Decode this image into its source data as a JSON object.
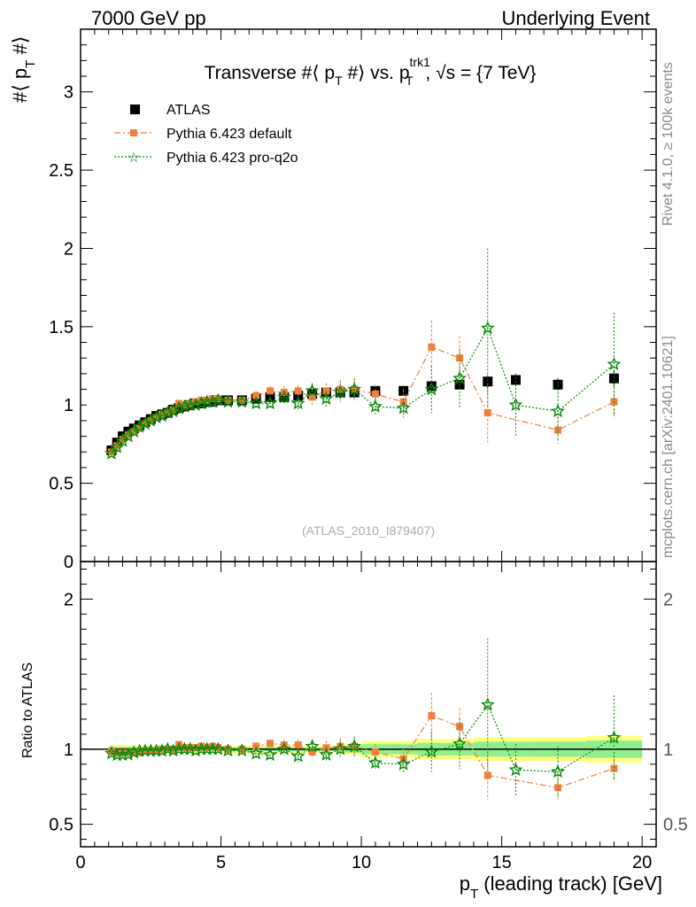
{
  "header": {
    "left": "7000 GeV pp",
    "right": "Underlying Event"
  },
  "side": {
    "rivet": "Rivet 4.1.0, ≥ 100k events",
    "mcplots": "mcplots.cern.ch [arXiv:2401.10621]"
  },
  "colors": {
    "atlas": "#000000",
    "default": "#f0803c",
    "proq2o": "#0a8a0a",
    "band_inner": "#90ee90",
    "band_outer": "#ffff80"
  },
  "chart_data": [
    {
      "type": "scatter",
      "title": "Transverse #⟨ p_T #⟩ vs. p_T^trk1, √s = {7 TeV}",
      "title_parts": {
        "lead": "Transverse #⟨ p",
        "sub1": "T",
        "mid": " #⟩ vs. p",
        "sup2": "trk1",
        "sub2": "T",
        "tail": ", √s = {7 TeV}"
      },
      "ylabel": "#⟨ p_T #⟩",
      "ylabel_parts": {
        "lead": "#⟨ p",
        "sub": "T",
        "tail": " #⟩"
      },
      "watermark": "(ATLAS_2010_I879407)",
      "xlim": [
        0,
        20.5
      ],
      "ylim": [
        0,
        3.4
      ],
      "yticks": [
        0,
        0.5,
        1,
        1.5,
        2,
        2.5,
        3
      ],
      "ytick_labels": [
        "0",
        "0.5",
        "1",
        "1.5",
        "2",
        "2.5",
        "3"
      ],
      "legend_position": "top-left",
      "legend": [
        "ATLAS",
        "Pythia 6.423 default",
        "Pythia 6.423 pro-q2o"
      ],
      "series": [
        {
          "name": "ATLAS",
          "x": [
            1.1,
            1.3,
            1.5,
            1.7,
            1.9,
            2.1,
            2.3,
            2.5,
            2.7,
            2.9,
            3.1,
            3.3,
            3.5,
            3.7,
            3.9,
            4.1,
            4.3,
            4.5,
            4.7,
            4.9,
            5.25,
            5.75,
            6.25,
            6.75,
            7.25,
            7.75,
            8.25,
            8.75,
            9.25,
            9.75,
            10.5,
            11.5,
            12.5,
            13.5,
            14.5,
            15.5,
            17.0,
            19.0
          ],
          "y": [
            0.71,
            0.76,
            0.8,
            0.83,
            0.85,
            0.87,
            0.89,
            0.91,
            0.93,
            0.94,
            0.95,
            0.97,
            0.98,
            0.99,
            1.0,
            1.01,
            1.01,
            1.02,
            1.02,
            1.03,
            1.03,
            1.03,
            1.04,
            1.05,
            1.05,
            1.06,
            1.07,
            1.08,
            1.08,
            1.08,
            1.09,
            1.09,
            1.12,
            1.13,
            1.15,
            1.16,
            1.13,
            1.17
          ],
          "yerr": [
            0.01,
            0.01,
            0.01,
            0.01,
            0.01,
            0.01,
            0.01,
            0.01,
            0.01,
            0.01,
            0.01,
            0.01,
            0.01,
            0.01,
            0.01,
            0.01,
            0.01,
            0.01,
            0.01,
            0.01,
            0.01,
            0.01,
            0.01,
            0.01,
            0.01,
            0.01,
            0.01,
            0.01,
            0.01,
            0.02,
            0.02,
            0.02,
            0.03,
            0.03,
            0.04,
            0.04,
            0.04,
            0.05
          ]
        },
        {
          "name": "Pythia 6.423 default",
          "x": [
            1.1,
            1.3,
            1.5,
            1.7,
            1.9,
            2.1,
            2.3,
            2.5,
            2.7,
            2.9,
            3.1,
            3.3,
            3.5,
            3.7,
            3.9,
            4.1,
            4.3,
            4.5,
            4.7,
            4.9,
            5.25,
            5.75,
            6.25,
            6.75,
            7.25,
            7.75,
            8.25,
            8.75,
            9.25,
            9.75,
            10.5,
            11.5,
            12.5,
            13.5,
            14.5,
            17.0,
            19.0
          ],
          "y": [
            0.7,
            0.74,
            0.78,
            0.81,
            0.83,
            0.85,
            0.88,
            0.9,
            0.92,
            0.94,
            0.95,
            0.97,
            1.01,
            1.0,
            1.01,
            1.02,
            1.03,
            1.03,
            1.04,
            1.04,
            1.03,
            1.03,
            1.06,
            1.09,
            1.08,
            1.09,
            1.05,
            1.09,
            1.1,
            1.1,
            1.07,
            1.02,
            1.37,
            1.3,
            0.95,
            0.84,
            1.02
          ],
          "yerr": [
            0.01,
            0.01,
            0.01,
            0.01,
            0.01,
            0.01,
            0.01,
            0.01,
            0.01,
            0.01,
            0.01,
            0.01,
            0.01,
            0.01,
            0.01,
            0.01,
            0.01,
            0.01,
            0.01,
            0.01,
            0.02,
            0.02,
            0.03,
            0.03,
            0.04,
            0.04,
            0.05,
            0.05,
            0.06,
            0.06,
            0.06,
            0.08,
            0.17,
            0.14,
            0.19,
            0.09,
            0.1
          ],
          "offscreen_ratio_note": "15.5"
        },
        {
          "name": "Pythia 6.423 pro-q2o",
          "x": [
            1.1,
            1.3,
            1.5,
            1.7,
            1.9,
            2.1,
            2.3,
            2.5,
            2.7,
            2.9,
            3.1,
            3.3,
            3.5,
            3.7,
            3.9,
            4.1,
            4.3,
            4.5,
            4.7,
            4.9,
            5.25,
            5.75,
            6.25,
            6.75,
            7.25,
            7.75,
            8.25,
            8.75,
            9.25,
            9.75,
            10.5,
            11.5,
            12.5,
            13.5,
            14.5,
            15.5,
            17.0,
            19.0
          ],
          "y": [
            0.69,
            0.73,
            0.77,
            0.8,
            0.83,
            0.86,
            0.88,
            0.9,
            0.92,
            0.93,
            0.95,
            0.96,
            0.98,
            0.99,
            1.0,
            1.0,
            1.01,
            1.02,
            1.02,
            1.03,
            1.02,
            1.02,
            1.01,
            1.01,
            1.05,
            1.01,
            1.09,
            1.04,
            1.08,
            1.1,
            0.99,
            0.98,
            1.1,
            1.17,
            1.49,
            1.0,
            0.96,
            1.26
          ],
          "yerr": [
            0.01,
            0.01,
            0.01,
            0.01,
            0.01,
            0.01,
            0.01,
            0.01,
            0.01,
            0.01,
            0.01,
            0.01,
            0.01,
            0.01,
            0.01,
            0.01,
            0.01,
            0.01,
            0.01,
            0.01,
            0.02,
            0.02,
            0.03,
            0.03,
            0.04,
            0.04,
            0.05,
            0.05,
            0.06,
            0.07,
            0.05,
            0.06,
            0.15,
            0.19,
            0.51,
            0.2,
            0.19,
            0.33
          ]
        }
      ]
    },
    {
      "type": "scatter",
      "title": "Ratio to ATLAS",
      "ylabel": "Ratio to ATLAS",
      "xlabel": "p_T (leading track) [GeV]",
      "xlabel_parts": {
        "lead": "p",
        "sub": "T",
        "tail": " (leading track) [GeV]"
      },
      "xlim": [
        0,
        20.5
      ],
      "ylim": [
        0.35,
        2.25
      ],
      "xticks": [
        0,
        5,
        10,
        15,
        20
      ],
      "xtick_labels": [
        "0",
        "5",
        "10",
        "15",
        "20"
      ],
      "yticks": [
        0.5,
        1,
        2
      ],
      "ytick_labels": [
        "0.5",
        "1",
        "2"
      ],
      "reference_line": 1,
      "band_note": "green: statistical, yellow: total uncertainty"
    }
  ]
}
